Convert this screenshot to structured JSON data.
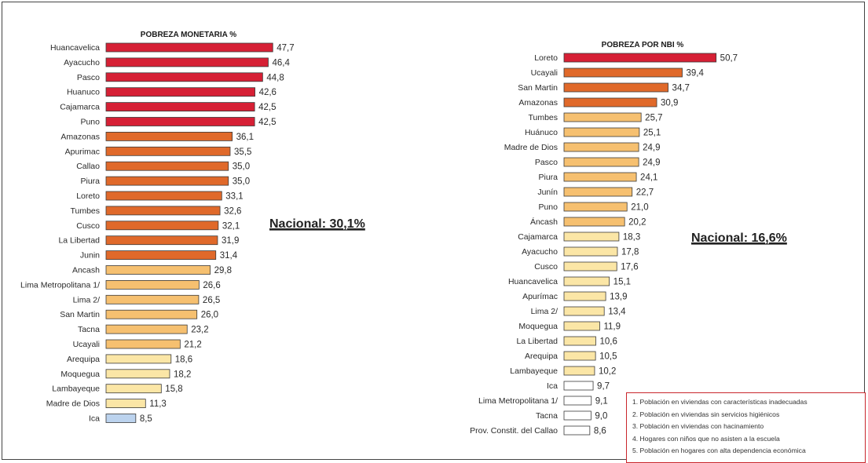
{
  "chart_data": [
    {
      "type": "bar",
      "orientation": "horizontal",
      "title": "POBREZA MONETARIA %",
      "categories": [
        "Huancavelica",
        "Ayacucho",
        "Pasco",
        "Huanuco",
        "Cajamarca",
        "Puno",
        "Amazonas",
        "Apurimac",
        "Callao",
        "Piura",
        "Loreto",
        "Tumbes",
        "Cusco",
        "La Libertad",
        "Junin",
        "Ancash",
        "Lima Metropolitana 1/",
        "Lima 2/",
        "San Martin",
        "Tacna",
        "Ucayali",
        "Arequipa",
        "Moquegua",
        "Lambayeque",
        "Madre de Dios",
        "Ica"
      ],
      "values": [
        47.7,
        46.4,
        44.8,
        42.6,
        42.5,
        42.5,
        36.1,
        35.5,
        35.0,
        35.0,
        33.1,
        32.6,
        32.1,
        31.9,
        31.4,
        29.8,
        26.6,
        26.5,
        26.0,
        23.2,
        21.2,
        18.6,
        18.2,
        15.8,
        11.3,
        8.5
      ],
      "value_labels": [
        "47,7",
        "46,4",
        "44,8",
        "42,6",
        "42,5",
        "42,5",
        "36,1",
        "35,5",
        "35,0",
        "35,0",
        "33,1",
        "32,6",
        "32,1",
        "31,9",
        "31,4",
        "29,8",
        "26,6",
        "26,5",
        "26,0",
        "23,2",
        "21,2",
        "18,6",
        "18,2",
        "15,8",
        "11,3",
        "8,5"
      ],
      "bar_colors": [
        "#d62035",
        "#d62035",
        "#d62035",
        "#d62035",
        "#d62035",
        "#d62035",
        "#e0692a",
        "#e0692a",
        "#e0692a",
        "#e0692a",
        "#e0692a",
        "#e0692a",
        "#e0692a",
        "#e0692a",
        "#e0692a",
        "#f6c070",
        "#f6c070",
        "#f6c070",
        "#f6c070",
        "#f6c070",
        "#f6c070",
        "#fbe6a6",
        "#fbe6a6",
        "#fbe6a6",
        "#fbe6a6",
        "#bcd3ee"
      ],
      "annotation": "Nacional: 30,1%",
      "xlim": [
        0,
        50
      ]
    },
    {
      "type": "bar",
      "orientation": "horizontal",
      "title": "POBREZA POR NBI %",
      "categories": [
        "Loreto",
        "Ucayali",
        "San Martin",
        "Amazonas",
        "Tumbes",
        "Huánuco",
        "Madre de Dios",
        "Pasco",
        "Piura",
        "Junín",
        "Puno",
        "Áncash",
        "Cajamarca",
        "Ayacucho",
        "Cusco",
        "Huancavelica",
        "Apurímac",
        "Lima 2/",
        "Moquegua",
        "La Libertad",
        "Arequipa",
        "Lambayeque",
        "Ica",
        "Lima Metropolitana 1/",
        "Tacna",
        "Prov. Constit. del Callao"
      ],
      "values": [
        50.7,
        39.4,
        34.7,
        30.9,
        25.7,
        25.1,
        24.9,
        24.9,
        24.1,
        22.7,
        21.0,
        20.2,
        18.3,
        17.8,
        17.6,
        15.1,
        13.9,
        13.4,
        11.9,
        10.6,
        10.5,
        10.2,
        9.7,
        9.1,
        9.0,
        8.6
      ],
      "value_labels": [
        "50,7",
        "39,4",
        "34,7",
        "30,9",
        "25,7",
        "25,1",
        "24,9",
        "24,9",
        "24,1",
        "22,7",
        "21,0",
        "20,2",
        "18,3",
        "17,8",
        "17,6",
        "15,1",
        "13,9",
        "13,4",
        "11,9",
        "10,6",
        "10,5",
        "10,2",
        "9,7",
        "9,1",
        "9,0",
        "8,6"
      ],
      "bar_colors": [
        "#d62035",
        "#e0692a",
        "#e0692a",
        "#e0692a",
        "#f6c070",
        "#f6c070",
        "#f6c070",
        "#f6c070",
        "#f6c070",
        "#f6c070",
        "#f6c070",
        "#f6c070",
        "#fbe6a6",
        "#fbe6a6",
        "#fbe6a6",
        "#fbe6a6",
        "#fbe6a6",
        "#fbe6a6",
        "#fbe6a6",
        "#fbe6a6",
        "#fbe6a6",
        "#fbe6a6",
        "#ffffff",
        "#ffffff",
        "#ffffff",
        "#ffffff"
      ],
      "annotation": "Nacional: 16,6%",
      "xlim": [
        0,
        55
      ]
    }
  ],
  "notes": [
    "1. Población en viviendas con características inadecuadas",
    "2. Población en viviendas sin servicios higiénicos",
    "3. Población en viviendas con hacinamiento",
    "4. Hogares con niños que no asisten a la escuela",
    "5. Población en hogares con alta dependencia económica"
  ]
}
